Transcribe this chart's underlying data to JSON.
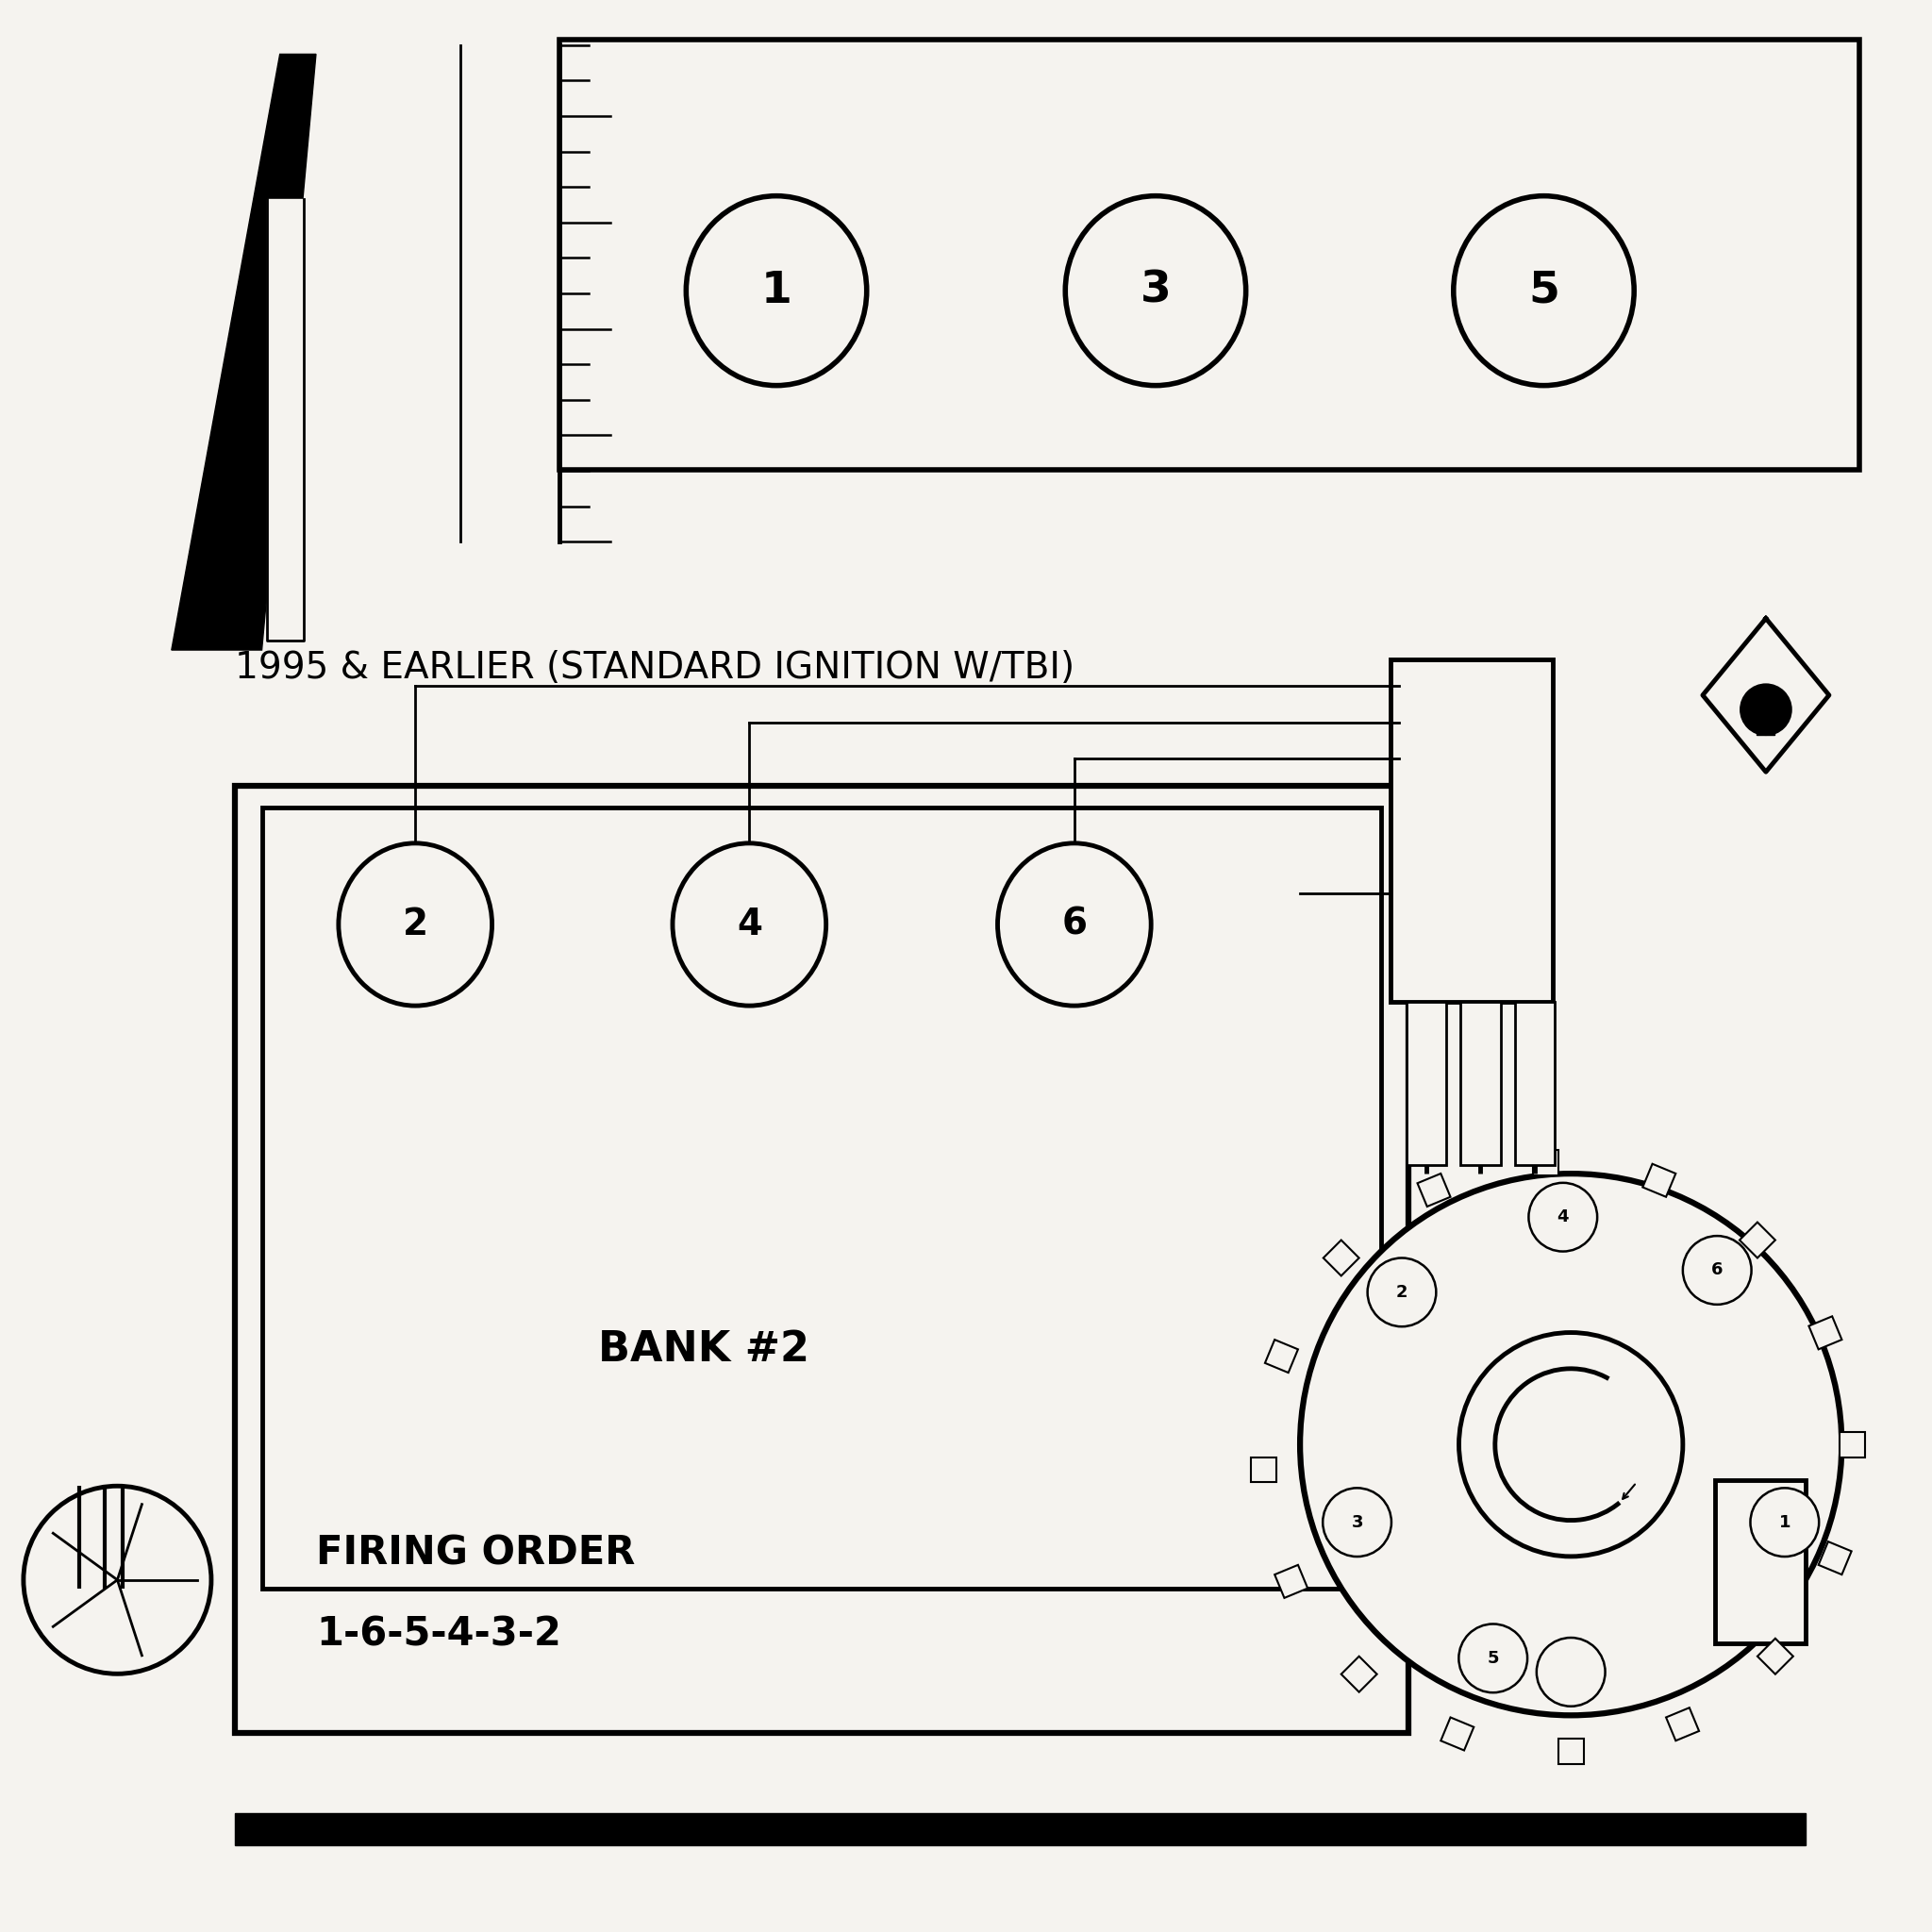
{
  "bg_color": "#f5f3ef",
  "title_text": "1995 & EARLIER (STANDARD IGNITION W/TBI)",
  "firing_order_line1": "FIRING ORDER",
  "firing_order_line2": "1-6-5-4-3-2",
  "bank2_text": "BANK #2",
  "cylinders_top": [
    "1",
    "3",
    "5"
  ],
  "cylinders_bot": [
    "2",
    "4",
    "6"
  ],
  "line_color": "#000000",
  "text_color": "#000000",
  "lw_main": 3.5,
  "lw_thin": 2.0
}
